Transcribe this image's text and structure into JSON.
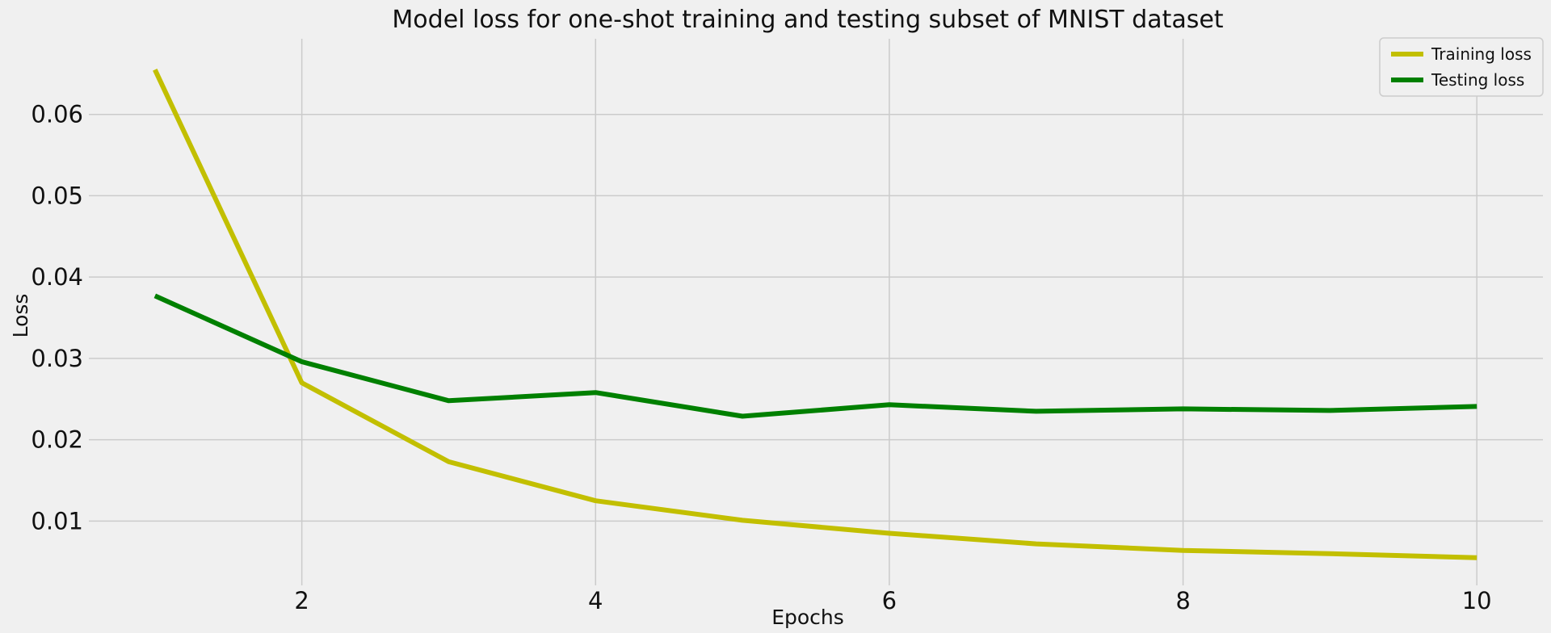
{
  "chart_data": {
    "type": "line",
    "title": "Model loss for one-shot training and testing subset of MNIST dataset",
    "xlabel": "Epochs",
    "ylabel": "Loss",
    "x": [
      1,
      2,
      3,
      4,
      5,
      6,
      7,
      8,
      9,
      10
    ],
    "xticks": [
      2,
      4,
      6,
      8,
      10
    ],
    "yticks": [
      0.01,
      0.02,
      0.03,
      0.04,
      0.05,
      0.06
    ],
    "xlim": [
      0.55,
      10.45
    ],
    "ylim": [
      0.0021,
      0.0693
    ],
    "grid": true,
    "legend_position": "top-right",
    "series": [
      {
        "name": "Training loss",
        "color": "#c2bf00",
        "values": [
          0.0655,
          0.027,
          0.0173,
          0.0125,
          0.0101,
          0.0085,
          0.0072,
          0.0064,
          0.006,
          0.0055
        ]
      },
      {
        "name": "Testing loss",
        "color": "#008000",
        "values": [
          0.0377,
          0.0296,
          0.0248,
          0.0258,
          0.0229,
          0.0243,
          0.0235,
          0.0238,
          0.0236,
          0.0241
        ]
      }
    ]
  }
}
